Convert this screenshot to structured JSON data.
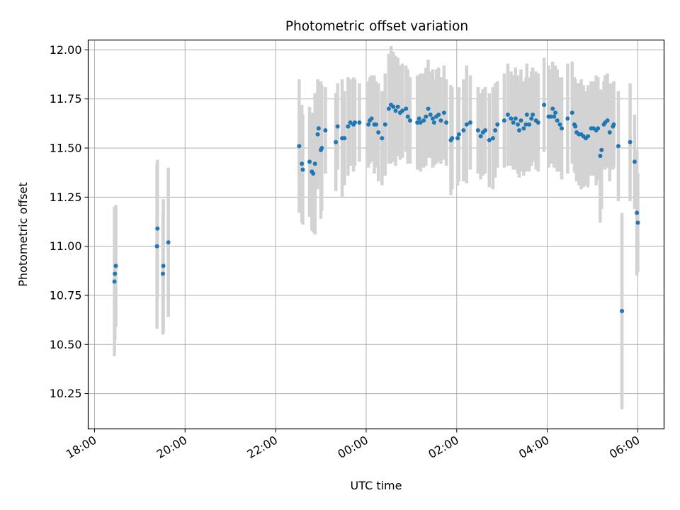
{
  "chart_data": {
    "type": "scatter",
    "title": "Photometric offset variation",
    "xlabel": "UTC time",
    "ylabel": "Photometric offset",
    "xlim_hours": [
      17.86,
      30.58
    ],
    "ylim": [
      10.07,
      12.05
    ],
    "grid": true,
    "x_ticks": [
      {
        "hours": 18,
        "label": "18:00"
      },
      {
        "hours": 20,
        "label": "20:00"
      },
      {
        "hours": 22,
        "label": "22:00"
      },
      {
        "hours": 24,
        "label": "00:00"
      },
      {
        "hours": 26,
        "label": "02:00"
      },
      {
        "hours": 28,
        "label": "04:00"
      },
      {
        "hours": 30,
        "label": "06:00"
      }
    ],
    "y_ticks": [
      {
        "value": 10.25,
        "label": "10.25"
      },
      {
        "value": 10.5,
        "label": "10.50"
      },
      {
        "value": 10.75,
        "label": "10.75"
      },
      {
        "value": 11.0,
        "label": "11.00"
      },
      {
        "value": 11.25,
        "label": "11.25"
      },
      {
        "value": 11.5,
        "label": "11.50"
      },
      {
        "value": 11.75,
        "label": "11.75"
      },
      {
        "value": 12.0,
        "label": "12.00"
      }
    ],
    "colors": {
      "point": "#1f77b4",
      "errorbar": "#d3d3d3",
      "grid": "#b0b0b0",
      "axis": "#000000"
    },
    "series": [
      {
        "name": "Photometric offset",
        "points": [
          [
            18.44,
            10.82,
            0.38
          ],
          [
            18.45,
            10.86,
            0.34
          ],
          [
            18.47,
            10.9,
            0.31
          ],
          [
            19.38,
            11.0,
            0.42
          ],
          [
            19.39,
            11.09,
            0.35
          ],
          [
            19.51,
            10.86,
            0.31
          ],
          [
            19.52,
            10.9,
            0.34
          ],
          [
            19.63,
            11.02,
            0.38
          ],
          [
            22.52,
            11.51,
            0.34
          ],
          [
            22.58,
            11.42,
            0.3
          ],
          [
            22.6,
            11.39,
            0.28
          ],
          [
            22.75,
            11.43,
            0.28
          ],
          [
            22.8,
            11.38,
            0.3
          ],
          [
            22.83,
            11.37,
            0.3
          ],
          [
            22.87,
            11.42,
            0.36
          ],
          [
            22.93,
            11.57,
            0.28
          ],
          [
            22.95,
            11.6,
            0.24
          ],
          [
            23.0,
            11.49,
            0.35
          ],
          [
            23.02,
            11.5,
            0.32
          ],
          [
            23.1,
            11.59,
            0.22
          ],
          [
            23.33,
            11.53,
            0.25
          ],
          [
            23.37,
            11.61,
            0.22
          ],
          [
            23.47,
            11.55,
            0.3
          ],
          [
            23.52,
            11.55,
            0.24
          ],
          [
            23.6,
            11.61,
            0.25
          ],
          [
            23.65,
            11.63,
            0.22
          ],
          [
            23.72,
            11.62,
            0.24
          ],
          [
            23.75,
            11.63,
            0.22
          ],
          [
            23.85,
            11.63,
            0.2
          ],
          [
            24.05,
            11.62,
            0.22
          ],
          [
            24.08,
            11.64,
            0.22
          ],
          [
            24.12,
            11.65,
            0.22
          ],
          [
            24.18,
            11.62,
            0.25
          ],
          [
            24.22,
            11.62,
            0.22
          ],
          [
            24.27,
            11.58,
            0.25
          ],
          [
            24.35,
            11.55,
            0.24
          ],
          [
            24.42,
            11.62,
            0.26
          ],
          [
            24.5,
            11.7,
            0.28
          ],
          [
            24.55,
            11.72,
            0.3
          ],
          [
            24.6,
            11.71,
            0.28
          ],
          [
            24.65,
            11.69,
            0.28
          ],
          [
            24.7,
            11.71,
            0.25
          ],
          [
            24.75,
            11.68,
            0.24
          ],
          [
            24.8,
            11.69,
            0.24
          ],
          [
            24.88,
            11.7,
            0.22
          ],
          [
            24.92,
            11.66,
            0.24
          ],
          [
            24.97,
            11.64,
            0.22
          ],
          [
            25.13,
            11.63,
            0.24
          ],
          [
            25.17,
            11.65,
            0.22
          ],
          [
            25.2,
            11.63,
            0.25
          ],
          [
            25.27,
            11.64,
            0.24
          ],
          [
            25.32,
            11.66,
            0.25
          ],
          [
            25.37,
            11.7,
            0.25
          ],
          [
            25.42,
            11.67,
            0.22
          ],
          [
            25.47,
            11.65,
            0.25
          ],
          [
            25.5,
            11.63,
            0.22
          ],
          [
            25.55,
            11.66,
            0.24
          ],
          [
            25.6,
            11.67,
            0.24
          ],
          [
            25.65,
            11.64,
            0.22
          ],
          [
            25.72,
            11.68,
            0.24
          ],
          [
            25.77,
            11.63,
            0.22
          ],
          [
            25.87,
            11.54,
            0.28
          ],
          [
            25.9,
            11.55,
            0.26
          ],
          [
            26.02,
            11.55,
            0.24
          ],
          [
            26.05,
            11.57,
            0.24
          ],
          [
            26.15,
            11.59,
            0.26
          ],
          [
            26.22,
            11.62,
            0.3
          ],
          [
            26.3,
            11.63,
            0.24
          ],
          [
            26.47,
            11.59,
            0.22
          ],
          [
            26.53,
            11.56,
            0.22
          ],
          [
            26.58,
            11.58,
            0.22
          ],
          [
            26.63,
            11.59,
            0.22
          ],
          [
            26.72,
            11.54,
            0.24
          ],
          [
            26.8,
            11.55,
            0.26
          ],
          [
            26.85,
            11.59,
            0.24
          ],
          [
            26.9,
            11.62,
            0.22
          ],
          [
            27.05,
            11.64,
            0.24
          ],
          [
            27.13,
            11.67,
            0.26
          ],
          [
            27.2,
            11.65,
            0.24
          ],
          [
            27.25,
            11.63,
            0.24
          ],
          [
            27.3,
            11.65,
            0.26
          ],
          [
            27.35,
            11.62,
            0.25
          ],
          [
            27.38,
            11.59,
            0.24
          ],
          [
            27.42,
            11.64,
            0.26
          ],
          [
            27.48,
            11.6,
            0.24
          ],
          [
            27.53,
            11.62,
            0.24
          ],
          [
            27.55,
            11.67,
            0.26
          ],
          [
            27.6,
            11.62,
            0.24
          ],
          [
            27.65,
            11.65,
            0.24
          ],
          [
            27.68,
            11.67,
            0.24
          ],
          [
            27.75,
            11.64,
            0.25
          ],
          [
            27.8,
            11.63,
            0.25
          ],
          [
            27.93,
            11.72,
            0.24
          ],
          [
            28.03,
            11.66,
            0.26
          ],
          [
            28.08,
            11.66,
            0.24
          ],
          [
            28.12,
            11.7,
            0.24
          ],
          [
            28.15,
            11.66,
            0.26
          ],
          [
            28.18,
            11.68,
            0.24
          ],
          [
            28.22,
            11.64,
            0.26
          ],
          [
            28.28,
            11.62,
            0.24
          ],
          [
            28.32,
            11.6,
            0.26
          ],
          [
            28.45,
            11.65,
            0.28
          ],
          [
            28.55,
            11.68,
            0.26
          ],
          [
            28.6,
            11.62,
            0.24
          ],
          [
            28.62,
            11.61,
            0.24
          ],
          [
            28.65,
            11.58,
            0.25
          ],
          [
            28.7,
            11.57,
            0.26
          ],
          [
            28.75,
            11.57,
            0.28
          ],
          [
            28.8,
            11.56,
            0.26
          ],
          [
            28.85,
            11.55,
            0.24
          ],
          [
            28.9,
            11.56,
            0.26
          ],
          [
            28.97,
            11.6,
            0.24
          ],
          [
            29.02,
            11.6,
            0.24
          ],
          [
            29.08,
            11.59,
            0.28
          ],
          [
            29.12,
            11.6,
            0.26
          ],
          [
            29.17,
            11.46,
            0.34
          ],
          [
            29.2,
            11.49,
            0.3
          ],
          [
            29.25,
            11.62,
            0.22
          ],
          [
            29.28,
            11.63,
            0.24
          ],
          [
            29.33,
            11.64,
            0.24
          ],
          [
            29.38,
            11.58,
            0.25
          ],
          [
            29.45,
            11.61,
            0.22
          ],
          [
            29.47,
            11.62,
            0.22
          ],
          [
            29.57,
            11.51,
            0.28
          ],
          [
            29.65,
            10.67,
            0.5
          ],
          [
            29.83,
            11.53,
            0.3
          ],
          [
            29.93,
            11.43,
            0.24
          ],
          [
            29.98,
            11.17,
            0.32
          ],
          [
            30.0,
            11.12,
            0.25
          ]
        ]
      }
    ]
  }
}
